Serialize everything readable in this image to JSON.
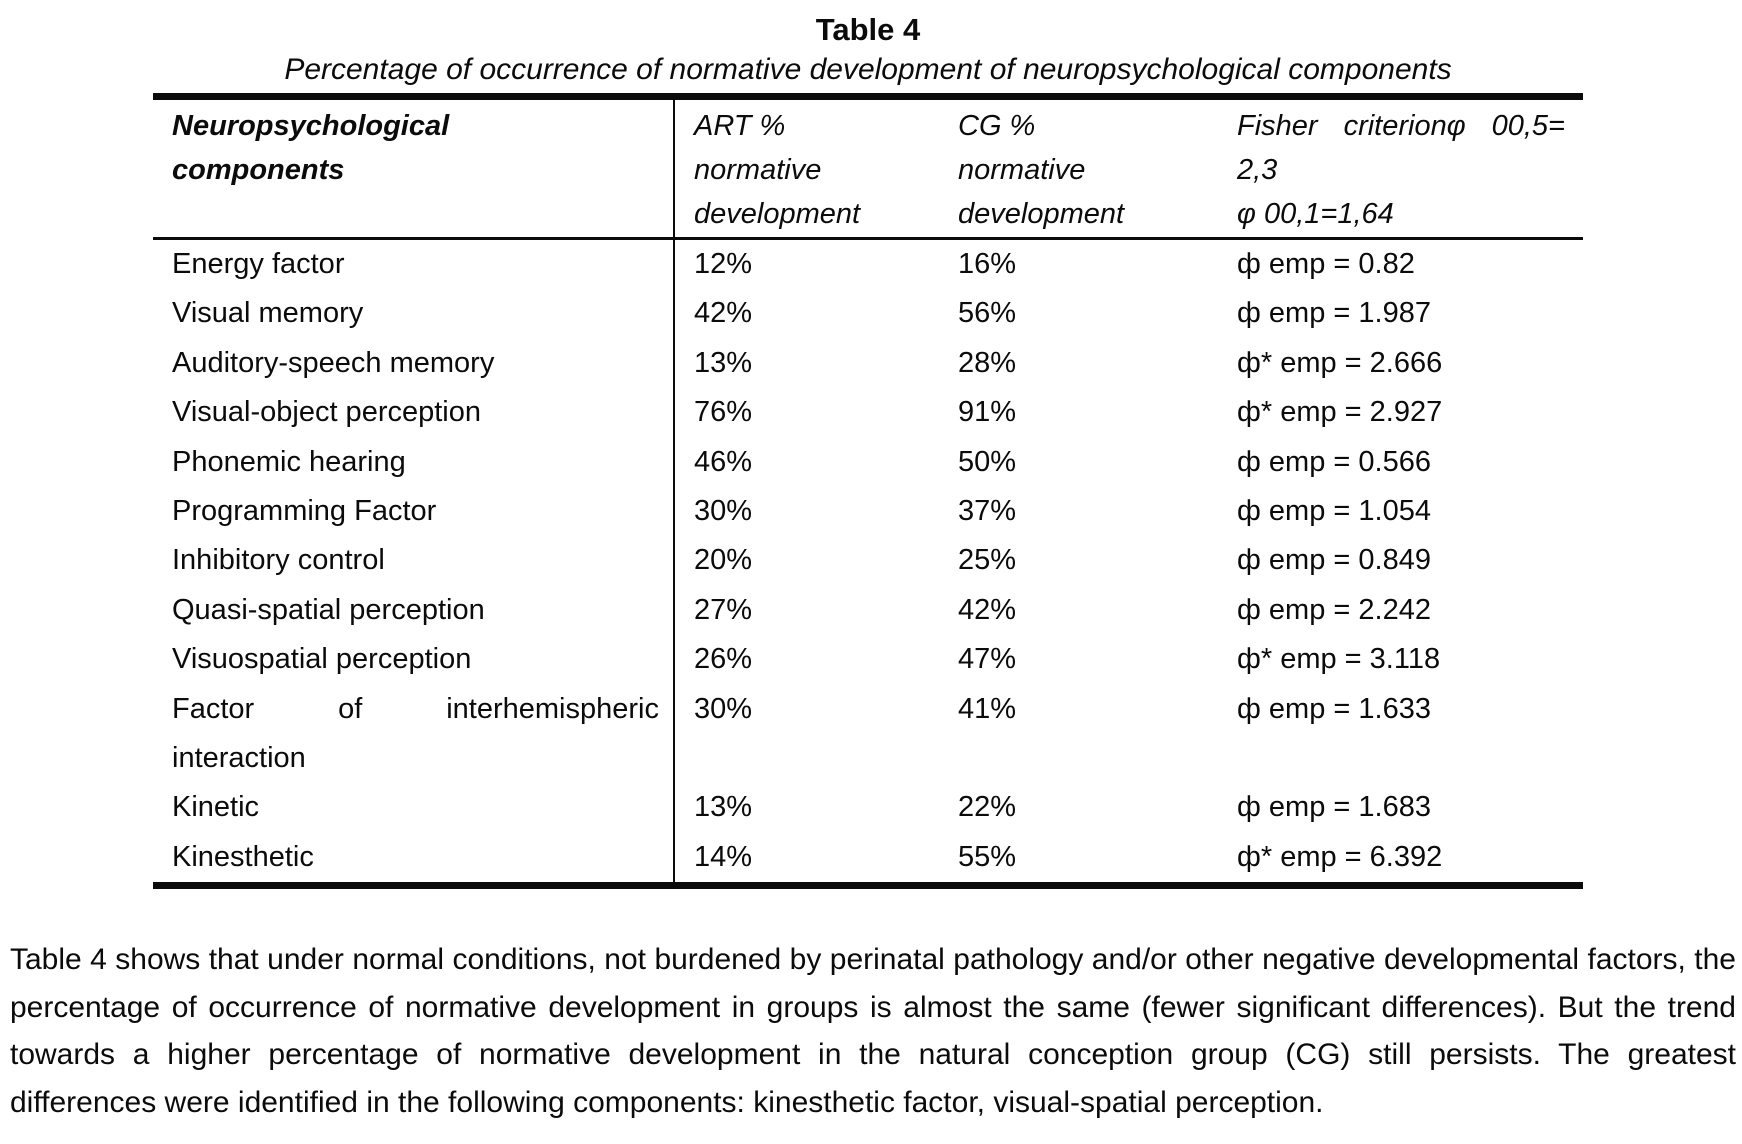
{
  "title": "Table 4",
  "caption": "Percentage of occurrence of normative development of neuropsychological components",
  "table": {
    "header": {
      "component": [
        "Neuropsychological",
        "components"
      ],
      "art": [
        "ART %",
        "normative",
        "development"
      ],
      "cg": [
        "CG %",
        "normative",
        "development"
      ],
      "fisher": {
        "tokens": [
          "Fisher",
          "criterionφ",
          "00,5="
        ],
        "line2": "2,3",
        "line3": "φ 00,1=1,64"
      }
    },
    "rows": [
      {
        "component": "Energy factor",
        "art": "12%",
        "cg": "16%",
        "fisher": "ф emp = 0.82"
      },
      {
        "component": "Visual memory",
        "art": "42%",
        "cg": "56%",
        "fisher": "ф emp = 1.987"
      },
      {
        "component": "Auditory-speech memory",
        "art": "13%",
        "cg": "28%",
        "fisher": "ф* emp = 2.666"
      },
      {
        "component": "Visual-object perception",
        "art": "76%",
        "cg": "91%",
        "fisher": "ф* emp = 2.927"
      },
      {
        "component": "Phonemic hearing",
        "art": "46%",
        "cg": "50%",
        "fisher": "ф emp = 0.566"
      },
      {
        "component": "Programming Factor",
        "art": "30%",
        "cg": "37%",
        "fisher": "ф emp = 1.054"
      },
      {
        "component": "Inhibitory control",
        "art": "20%",
        "cg": "25%",
        "fisher": "ф emp = 0.849"
      },
      {
        "component": "Quasi-spatial perception",
        "art": "27%",
        "cg": "42%",
        "fisher": "ф emp = 2.242"
      },
      {
        "component": "Visuospatial perception",
        "art": "26%",
        "cg": "47%",
        "fisher": "ф* emp = 3.118"
      },
      {
        "component_tokens": [
          "Factor",
          "of",
          "interhemispheric"
        ],
        "component_line2": "interaction",
        "art": "30%",
        "cg": "41%",
        "fisher": "ф emp = 1.633"
      },
      {
        "component": "Kinetic",
        "art": "13%",
        "cg": "22%",
        "fisher": "ф emp = 1.683"
      },
      {
        "component": "Kinesthetic",
        "art": "14%",
        "cg": "55%",
        "fisher": "ф* emp = 6.392"
      }
    ]
  },
  "paragraph": "Table 4 shows that under normal conditions, not burdened by perinatal pathology and/or other negative developmental factors, the percentage of occurrence of normative development in groups is almost the same (fewer significant differences). But the trend towards a higher percentage of normative development in the natural conception group (CG) still persists. The greatest differences were identified in the following components: kinesthetic factor, visual-spatial perception."
}
